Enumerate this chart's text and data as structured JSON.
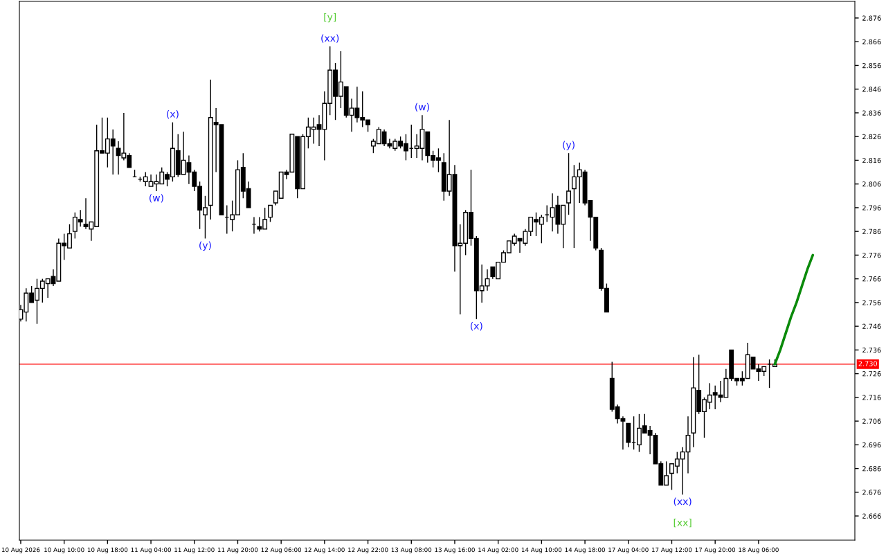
{
  "chart_data": {
    "type": "candlestick",
    "categories": [
      "10 Aug 2026",
      null,
      null,
      null,
      null,
      null,
      null,
      null,
      "10 Aug 10:00",
      null,
      null,
      null,
      null,
      null,
      null,
      null,
      "10 Aug 18:00",
      null,
      null,
      null,
      null,
      null,
      null,
      null,
      "11 Aug 04:00",
      null,
      null,
      null,
      null,
      null,
      null,
      null,
      "11 Aug 12:00",
      null,
      null,
      null,
      null,
      null,
      null,
      null,
      "11 Aug 20:00",
      null,
      null,
      null,
      null,
      null,
      null,
      null,
      "12 Aug 06:00",
      null,
      null,
      null,
      null,
      null,
      null,
      null,
      "12 Aug 14:00",
      null,
      null,
      null,
      null,
      null,
      null,
      null,
      "12 Aug 22:00",
      null,
      null,
      null,
      null,
      null,
      null,
      null,
      "13 Aug 08:00",
      null,
      null,
      null,
      null,
      null,
      null,
      null,
      "13 Aug 16:00",
      null,
      null,
      null,
      null,
      null,
      null,
      null,
      "14 Aug 02:00",
      null,
      null,
      null,
      null,
      null,
      null,
      null,
      "14 Aug 10:00",
      null,
      null,
      null,
      null,
      null,
      null,
      null,
      "14 Aug 18:00",
      null,
      null,
      null,
      null,
      null,
      null,
      null,
      "17 Aug 04:00",
      null,
      null,
      null,
      null,
      null,
      null,
      null,
      "17 Aug 12:00",
      null,
      null,
      null,
      null,
      null,
      null,
      null,
      "17 Aug 20:00",
      null,
      null,
      null,
      null,
      null,
      null,
      null,
      "18 Aug 06:00",
      null,
      null,
      null,
      null,
      null,
      null,
      null,
      null,
      null,
      null,
      null,
      null,
      null,
      null,
      null,
      null,
      null
    ],
    "ohlc": [
      [
        2.749,
        2.755,
        2.748,
        2.753
      ],
      [
        2.752,
        2.762,
        2.748,
        2.76
      ],
      [
        2.76,
        2.763,
        2.756,
        2.756
      ],
      [
        2.757,
        2.766,
        2.747,
        2.762
      ],
      [
        2.762,
        2.766,
        2.756,
        2.765
      ],
      [
        2.764,
        2.766,
        2.758,
        2.766
      ],
      [
        2.767,
        2.77,
        2.763,
        2.764
      ],
      [
        2.765,
        2.783,
        2.765,
        2.781
      ],
      [
        2.781,
        2.785,
        2.774,
        2.78
      ],
      [
        2.779,
        2.789,
        2.779,
        2.785
      ],
      [
        2.786,
        2.794,
        2.783,
        2.792
      ],
      [
        2.791,
        2.795,
        2.788,
        2.79
      ],
      [
        2.789,
        2.8,
        2.787,
        2.788
      ],
      [
        2.787,
        2.79,
        2.782,
        2.79
      ],
      [
        2.788,
        2.831,
        2.788,
        2.82
      ],
      [
        2.82,
        2.834,
        2.819,
        2.819
      ],
      [
        2.819,
        2.834,
        2.813,
        2.825
      ],
      [
        2.825,
        2.829,
        2.81,
        2.822
      ],
      [
        2.821,
        2.824,
        2.81,
        2.818
      ],
      [
        2.817,
        2.836,
        2.816,
        2.819
      ],
      [
        2.818,
        2.819,
        2.813,
        2.813
      ],
      [
        2.809,
        2.812,
        2.809,
        2.809
      ],
      [
        2.808,
        2.809,
        2.807,
        2.808
      ],
      [
        2.807,
        2.811,
        2.805,
        2.809
      ],
      [
        2.805,
        2.81,
        2.805,
        2.807
      ],
      [
        2.806,
        2.81,
        2.803,
        2.807
      ],
      [
        2.806,
        2.813,
        2.806,
        2.811
      ],
      [
        2.81,
        2.811,
        2.805,
        2.808
      ],
      [
        2.809,
        2.832,
        2.807,
        2.821
      ],
      [
        2.82,
        2.827,
        2.809,
        2.81
      ],
      [
        2.81,
        2.828,
        2.81,
        2.816
      ],
      [
        2.815,
        2.818,
        2.806,
        2.811
      ],
      [
        2.811,
        2.812,
        2.803,
        2.805
      ],
      [
        2.805,
        2.807,
        2.787,
        2.795
      ],
      [
        2.793,
        2.801,
        2.783,
        2.796
      ],
      [
        2.797,
        2.85,
        2.791,
        2.834
      ],
      [
        2.832,
        2.838,
        2.811,
        2.831
      ],
      [
        2.831,
        2.831,
        2.793,
        2.793
      ],
      [
        2.792,
        2.797,
        2.785,
        2.792
      ],
      [
        2.791,
        2.799,
        2.786,
        2.793
      ],
      [
        2.793,
        2.816,
        2.793,
        2.812
      ],
      [
        2.813,
        2.819,
        2.8,
        2.803
      ],
      [
        2.804,
        2.807,
        2.796,
        2.796
      ],
      [
        2.789,
        2.792,
        2.785,
        2.789
      ],
      [
        2.788,
        2.792,
        2.786,
        2.787
      ],
      [
        2.787,
        2.796,
        2.787,
        2.791
      ],
      [
        2.792,
        2.797,
        2.79,
        2.797
      ],
      [
        2.798,
        2.803,
        2.797,
        2.803
      ],
      [
        2.8,
        2.811,
        2.8,
        2.811
      ],
      [
        2.811,
        2.812,
        2.808,
        2.81
      ],
      [
        2.811,
        2.827,
        2.811,
        2.827
      ],
      [
        2.826,
        2.826,
        2.8,
        2.804
      ],
      [
        2.804,
        2.827,
        2.804,
        2.826
      ],
      [
        2.826,
        2.834,
        2.821,
        2.83
      ],
      [
        2.829,
        2.834,
        2.823,
        2.83
      ],
      [
        2.831,
        2.835,
        2.822,
        2.829
      ],
      [
        2.829,
        2.845,
        2.816,
        2.84
      ],
      [
        2.84,
        2.864,
        2.835,
        2.854
      ],
      [
        2.854,
        2.857,
        2.833,
        2.843
      ],
      [
        2.843,
        2.862,
        2.838,
        2.849
      ],
      [
        2.847,
        2.847,
        2.834,
        2.835
      ],
      [
        2.835,
        2.842,
        2.828,
        2.838
      ],
      [
        2.838,
        2.847,
        2.832,
        2.834
      ],
      [
        2.834,
        2.845,
        2.83,
        2.833
      ],
      [
        2.833,
        2.833,
        2.828,
        2.831
      ],
      [
        2.822,
        2.825,
        2.819,
        2.824
      ],
      [
        2.823,
        2.83,
        2.823,
        2.829
      ],
      [
        2.828,
        2.829,
        2.822,
        2.823
      ],
      [
        2.823,
        2.825,
        2.821,
        2.822
      ],
      [
        2.821,
        2.825,
        2.82,
        2.824
      ],
      [
        2.824,
        2.826,
        2.821,
        2.822
      ],
      [
        2.823,
        2.827,
        2.816,
        2.82
      ],
      [
        2.821,
        2.831,
        2.817,
        2.821
      ],
      [
        2.821,
        2.827,
        2.817,
        2.822
      ],
      [
        2.821,
        2.835,
        2.816,
        2.829
      ],
      [
        2.828,
        2.828,
        2.815,
        2.818
      ],
      [
        2.818,
        2.82,
        2.813,
        2.816
      ],
      [
        2.817,
        2.821,
        2.811,
        2.816
      ],
      [
        2.815,
        2.819,
        2.799,
        2.803
      ],
      [
        2.803,
        2.833,
        2.801,
        2.81
      ],
      [
        2.81,
        2.814,
        2.769,
        2.78
      ],
      [
        2.78,
        2.789,
        2.751,
        2.781
      ],
      [
        2.781,
        2.795,
        2.776,
        2.794
      ],
      [
        2.794,
        2.812,
        2.78,
        2.783
      ],
      [
        2.783,
        2.784,
        2.749,
        2.761
      ],
      [
        2.761,
        2.772,
        2.756,
        2.763
      ],
      [
        2.763,
        2.77,
        2.761,
        2.766
      ],
      [
        2.771,
        2.771,
        2.766,
        2.767
      ],
      [
        2.766,
        2.773,
        2.766,
        2.773
      ],
      [
        2.773,
        2.778,
        2.773,
        2.777
      ],
      [
        2.777,
        2.782,
        2.777,
        2.782
      ],
      [
        2.781,
        2.785,
        2.78,
        2.784
      ],
      [
        2.783,
        2.783,
        2.777,
        2.782
      ],
      [
        2.781,
        2.787,
        2.78,
        2.786
      ],
      [
        2.786,
        2.792,
        2.784,
        2.792
      ],
      [
        2.791,
        2.794,
        2.784,
        2.79
      ],
      [
        2.789,
        2.793,
        2.781,
        2.792
      ],
      [
        2.793,
        2.797,
        2.79,
        2.793
      ],
      [
        2.792,
        2.802,
        2.786,
        2.796
      ],
      [
        2.797,
        2.801,
        2.785,
        2.789
      ],
      [
        2.789,
        2.797,
        2.779,
        2.797
      ],
      [
        2.798,
        2.819,
        2.793,
        2.803
      ],
      [
        2.804,
        2.814,
        2.779,
        2.809
      ],
      [
        2.809,
        2.815,
        2.798,
        2.812
      ],
      [
        2.811,
        2.812,
        2.797,
        2.798
      ],
      [
        2.799,
        2.799,
        2.782,
        2.792
      ],
      [
        2.792,
        2.792,
        2.778,
        2.779
      ],
      [
        2.778,
        2.779,
        2.761,
        2.762
      ],
      [
        2.762,
        2.764,
        2.752,
        2.752
      ],
      [
        2.724,
        2.731,
        2.71,
        2.711
      ],
      [
        2.712,
        2.713,
        2.705,
        2.707
      ],
      [
        2.707,
        2.708,
        2.694,
        2.706
      ],
      [
        2.705,
        2.705,
        2.695,
        2.697
      ],
      [
        2.697,
        2.708,
        2.694,
        2.697
      ],
      [
        2.696,
        2.709,
        2.693,
        2.703
      ],
      [
        2.704,
        2.709,
        2.701,
        2.701
      ],
      [
        2.702,
        2.704,
        2.692,
        2.7
      ],
      [
        2.7,
        2.701,
        2.688,
        2.688
      ],
      [
        2.688,
        2.689,
        2.679,
        2.679
      ],
      [
        2.679,
        2.689,
        2.679,
        2.683
      ],
      [
        2.684,
        2.688,
        2.677,
        2.688
      ],
      [
        2.687,
        2.693,
        2.684,
        2.69
      ],
      [
        2.69,
        2.695,
        2.675,
        2.693
      ],
      [
        2.693,
        2.708,
        2.684,
        2.7
      ],
      [
        2.701,
        2.733,
        2.695,
        2.72
      ],
      [
        2.719,
        2.734,
        2.709,
        2.71
      ],
      [
        2.71,
        2.716,
        2.699,
        2.715
      ],
      [
        2.714,
        2.722,
        2.711,
        2.717
      ],
      [
        2.718,
        2.721,
        2.711,
        2.717
      ],
      [
        2.717,
        2.723,
        2.714,
        2.716
      ],
      [
        2.716,
        2.728,
        2.716,
        2.724
      ],
      [
        2.736,
        2.736,
        2.723,
        2.724
      ],
      [
        2.724,
        2.724,
        2.721,
        2.723
      ],
      [
        2.724,
        2.727,
        2.721,
        2.723
      ],
      [
        2.724,
        2.739,
        2.724,
        2.734
      ],
      [
        2.733,
        2.733,
        2.728,
        2.728
      ],
      [
        2.728,
        2.73,
        2.723,
        2.727
      ],
      [
        2.727,
        2.729,
        2.725,
        2.729
      ],
      [
        2.73,
        2.732,
        2.72,
        2.73
      ],
      [
        2.729,
        2.732,
        2.729,
        2.73
      ],
      null,
      null,
      null,
      null,
      null,
      null,
      null,
      null,
      null,
      null,
      null,
      null,
      null,
      null
    ],
    "series": [
      {
        "type": "line",
        "color": "#0a8a0a",
        "values": [
          null,
          null,
          null,
          null,
          null,
          null,
          null,
          null,
          null,
          null,
          null,
          null,
          null,
          null,
          null,
          null,
          null,
          null,
          null,
          null,
          null,
          null,
          null,
          null,
          null,
          null,
          null,
          null,
          null,
          null,
          null,
          null,
          null,
          null,
          null,
          null,
          null,
          null,
          null,
          null,
          null,
          null,
          null,
          null,
          null,
          null,
          null,
          null,
          null,
          null,
          null,
          null,
          null,
          null,
          null,
          null,
          null,
          null,
          null,
          null,
          null,
          null,
          null,
          null,
          null,
          null,
          null,
          null,
          null,
          null,
          null,
          null,
          null,
          null,
          null,
          null,
          null,
          null,
          null,
          null,
          null,
          null,
          null,
          null,
          null,
          null,
          null,
          null,
          null,
          null,
          null,
          null,
          null,
          null,
          null,
          null,
          null,
          null,
          null,
          null,
          null,
          null,
          null,
          null,
          null,
          null,
          null,
          null,
          null,
          null,
          null,
          null,
          null,
          null,
          null,
          null,
          null,
          null,
          null,
          null,
          null,
          null,
          null,
          null,
          null,
          null,
          null,
          null,
          null,
          null,
          null,
          null,
          null,
          null,
          null,
          null,
          null,
          null,
          null,
          2.73,
          2.736,
          2.743,
          2.75,
          2.756,
          2.763,
          2.77,
          2.776,
          null,
          null,
          null,
          null,
          null,
          null,
          null
        ]
      }
    ],
    "ylim": [
      2.6558,
      2.883
    ],
    "yticks": [
      2.666,
      2.676,
      2.686,
      2.696,
      2.706,
      2.716,
      2.726,
      2.736,
      2.746,
      2.756,
      2.766,
      2.776,
      2.786,
      2.796,
      2.806,
      2.816,
      2.826,
      2.836,
      2.846,
      2.856,
      2.866,
      2.876
    ],
    "ref_lines": [
      {
        "axis": "y",
        "value": 2.73,
        "label": "2.730",
        "color": "#ff0000"
      }
    ],
    "annotations": [
      {
        "text": "(w)",
        "y": 2.803
      },
      {
        "text": "(x)",
        "y": 2.832
      },
      {
        "text": "(y)",
        "y": 2.783
      },
      {
        "text": "(xx)",
        "y": 2.864
      },
      {
        "text": "[y]",
        "y": 2.864
      },
      {
        "text": "(w)",
        "y": 2.835
      },
      {
        "text": "(x)",
        "y": 2.749
      },
      {
        "text": "(y)",
        "y": 2.819
      },
      {
        "text": "(xx)",
        "y": 2.675
      },
      {
        "text": "[xx]",
        "y": 2.675
      }
    ],
    "grid": false,
    "legend": false
  }
}
